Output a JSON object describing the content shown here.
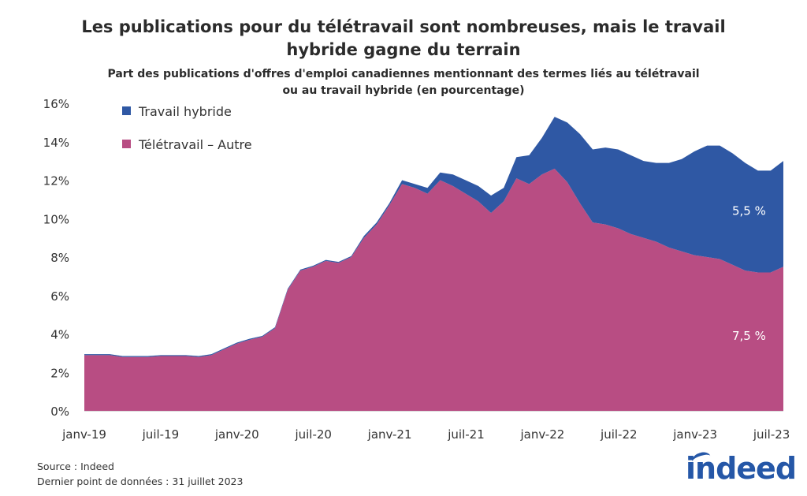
{
  "chart_data": {
    "type": "area",
    "stacked": true,
    "title": "Les publications pour du télétravail sont nombreuses, mais le travail hybride gagne du terrain",
    "title_lines": [
      "Les publications pour du télétravail sont nombreuses, mais le travail",
      "hybride gagne du terrain"
    ],
    "subtitle_lines": [
      "Part des publications d'offres d'emploi canadiennes mentionnant des termes liés au télétravail",
      "ou au travail hybride (en pourcentage)"
    ],
    "xlabel": "",
    "ylabel": "",
    "x_months_from_jan2019": [
      0,
      1,
      2,
      3,
      4,
      5,
      6,
      7,
      8,
      9,
      10,
      11,
      12,
      13,
      14,
      15,
      16,
      17,
      18,
      19,
      20,
      21,
      22,
      23,
      24,
      25,
      26,
      27,
      28,
      29,
      30,
      31,
      32,
      33,
      34,
      35,
      36,
      37,
      38,
      39,
      40,
      41,
      42,
      43,
      44,
      45,
      46,
      47,
      48,
      49,
      50,
      51,
      52,
      53,
      54,
      55
    ],
    "xlim": [
      0,
      55
    ],
    "x_ticks": [
      {
        "at": 0,
        "label": "janv-19"
      },
      {
        "at": 6,
        "label": "juil-19"
      },
      {
        "at": 12,
        "label": "janv-20"
      },
      {
        "at": 18,
        "label": "juil-20"
      },
      {
        "at": 24,
        "label": "janv-21"
      },
      {
        "at": 30,
        "label": "juil-21"
      },
      {
        "at": 36,
        "label": "janv-22"
      },
      {
        "at": 42,
        "label": "juil-22"
      },
      {
        "at": 48,
        "label": "janv-23"
      },
      {
        "at": 54,
        "label": "juil-23"
      }
    ],
    "ylim": [
      0,
      16
    ],
    "y_ticks": [
      {
        "at": 0,
        "label": "0%"
      },
      {
        "at": 2,
        "label": "2%"
      },
      {
        "at": 4,
        "label": "4%"
      },
      {
        "at": 6,
        "label": "6%"
      },
      {
        "at": 8,
        "label": "8%"
      },
      {
        "at": 10,
        "label": "10%"
      },
      {
        "at": 12,
        "label": "12%"
      },
      {
        "at": 14,
        "label": "14%"
      },
      {
        "at": 16,
        "label": "16%"
      }
    ],
    "grid": false,
    "legend_placement": "top-left",
    "series": [
      {
        "name": "Télétravail – Autre",
        "color": "#b84d83",
        "values": [
          2.9,
          2.9,
          2.9,
          2.8,
          2.8,
          2.8,
          2.85,
          2.85,
          2.85,
          2.8,
          2.9,
          3.2,
          3.5,
          3.7,
          3.85,
          4.3,
          6.3,
          7.3,
          7.5,
          7.8,
          7.7,
          8.0,
          9.0,
          9.7,
          10.7,
          11.8,
          11.6,
          11.3,
          12.0,
          11.7,
          11.3,
          10.9,
          10.3,
          10.9,
          12.1,
          11.8,
          12.3,
          12.6,
          11.9,
          10.8,
          9.8,
          9.7,
          9.5,
          9.2,
          9.0,
          8.8,
          8.5,
          8.3,
          8.1,
          8.0,
          7.9,
          7.6,
          7.3,
          7.2,
          7.2,
          7.5
        ]
      },
      {
        "name": "Travail hybride",
        "color": "#2f58a4",
        "values": [
          0.05,
          0.05,
          0.05,
          0.05,
          0.05,
          0.05,
          0.05,
          0.05,
          0.05,
          0.05,
          0.05,
          0.05,
          0.05,
          0.05,
          0.05,
          0.05,
          0.05,
          0.05,
          0.05,
          0.05,
          0.05,
          0.05,
          0.1,
          0.1,
          0.1,
          0.2,
          0.2,
          0.3,
          0.4,
          0.6,
          0.7,
          0.8,
          0.9,
          0.7,
          1.1,
          1.5,
          1.9,
          2.7,
          3.1,
          3.6,
          3.8,
          4.0,
          4.1,
          4.1,
          4.0,
          4.1,
          4.4,
          4.8,
          5.4,
          5.8,
          5.9,
          5.8,
          5.6,
          5.3,
          5.3,
          5.5
        ]
      }
    ],
    "annotations": [
      {
        "text": "5,5 %",
        "series": "Travail hybride",
        "x": 52.3,
        "y": 10.2
      },
      {
        "text": "7,5 %",
        "series": "Télétravail – Autre",
        "x": 52.3,
        "y": 3.7
      }
    ]
  },
  "footer": {
    "source": "Source : Indeed",
    "last_point": "Dernier point de données : 31 juillet 2023"
  },
  "logo": {
    "text": "indeed"
  }
}
